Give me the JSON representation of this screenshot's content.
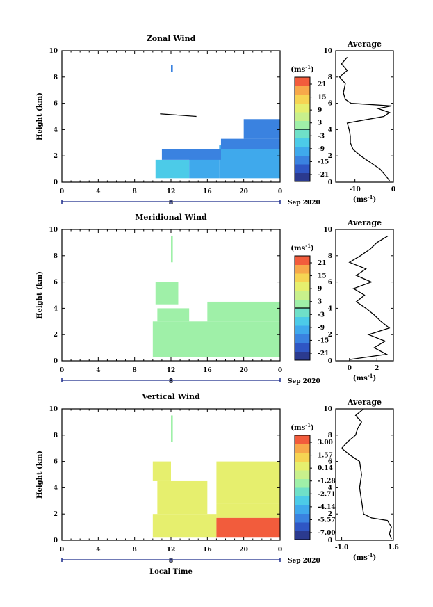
{
  "chart_data": [
    {
      "type": "heatmap",
      "title": "Zonal Wind",
      "xlabel": "",
      "ylabel": "Height (km)",
      "xlim": [
        0,
        24
      ],
      "ylim": [
        0,
        10
      ],
      "x_ticks": [
        "0",
        "4",
        "8",
        "12",
        "16",
        "20",
        "0"
      ],
      "y_ticks": [
        "0",
        "2",
        "4",
        "6",
        "8",
        "10"
      ],
      "date_marker": {
        "x": 12,
        "label": "8"
      },
      "date_suffix": "Sep 2020",
      "colorbar": {
        "unit_base": "(ms",
        "unit_exp": "-1",
        "unit_close": ")",
        "ticks": [
          "21",
          "15",
          "9",
          "3",
          "-3",
          "-9",
          "-15",
          "-21"
        ],
        "vmin": -24,
        "vmax": 24
      },
      "blocks": [
        [
          10.3,
          14.0,
          0.3,
          1.7,
          -7
        ],
        [
          14.0,
          17.3,
          0.3,
          2.5,
          -10
        ],
        [
          17.3,
          24,
          0.3,
          2.8,
          -12
        ],
        [
          11.0,
          17.5,
          1.7,
          2.5,
          -14
        ],
        [
          17.5,
          24,
          2.5,
          3.3,
          -15
        ],
        [
          20.0,
          24,
          3.3,
          4.8,
          -16
        ],
        [
          12.0,
          12.2,
          8.4,
          8.9,
          -15
        ]
      ],
      "contours": [
        [
          [
            10.8,
            5.2
          ],
          [
            14.8,
            5.0
          ]
        ]
      ],
      "profile": {
        "title": "Average",
        "xlabel_base": "(ms",
        "xlabel_exp": "-1",
        "xlabel_close": ")",
        "xlim": [
          -15,
          0
        ],
        "x_ticks": [
          {
            "v": -10,
            "t": "-10"
          },
          {
            "v": 0,
            "t": "0"
          }
        ],
        "y_ticks": [
          "0",
          "2",
          "4",
          "6",
          "8",
          "10"
        ],
        "height": [
          0.1,
          0.5,
          1,
          1.5,
          2,
          2.5,
          3,
          3.5,
          4,
          4.5,
          5,
          5.3,
          5.6,
          5.8,
          6,
          6.3,
          6.8,
          7.5,
          8,
          8.5,
          9,
          9.5
        ],
        "value": [
          -1,
          -2,
          -3.5,
          -6,
          -8.5,
          -10.5,
          -11.2,
          -11.2,
          -11.5,
          -12,
          -2.5,
          -1,
          -4,
          -0.5,
          -11,
          -12.5,
          -13,
          -12.5,
          -14,
          -12,
          -13.5,
          -12
        ]
      }
    },
    {
      "type": "heatmap",
      "title": "Meridional Wind",
      "xlabel": "",
      "ylabel": "Height (km)",
      "xlim": [
        0,
        24
      ],
      "ylim": [
        0,
        10
      ],
      "x_ticks": [
        "0",
        "4",
        "8",
        "12",
        "16",
        "20",
        "0"
      ],
      "y_ticks": [
        "0",
        "2",
        "4",
        "6",
        "8",
        "10"
      ],
      "date_marker": {
        "x": 12,
        "label": "8"
      },
      "date_suffix": "Sep 2020",
      "colorbar": {
        "unit_base": "(ms",
        "unit_exp": "-1",
        "unit_close": ")",
        "ticks": [
          "21",
          "15",
          "9",
          "3",
          "-3",
          "-9",
          "-15",
          "-21"
        ],
        "vmin": -24,
        "vmax": 24
      },
      "blocks": [
        [
          10.0,
          24,
          0.3,
          1.8,
          2
        ],
        [
          10.0,
          24,
          1.8,
          3.0,
          3
        ],
        [
          10.5,
          14,
          3.0,
          4.0,
          2
        ],
        [
          16.0,
          24,
          3.0,
          4.5,
          1
        ],
        [
          10.3,
          12.8,
          4.3,
          6.0,
          3
        ],
        [
          12.0,
          12.2,
          7.5,
          9.5,
          2
        ]
      ],
      "contours": [],
      "profile": {
        "title": "Average",
        "xlabel_base": "(ms",
        "xlabel_exp": "-1",
        "xlabel_close": ")",
        "xlim": [
          -1,
          3.2
        ],
        "x_ticks": [
          {
            "v": 0,
            "t": "0"
          },
          {
            "v": 2,
            "t": "2"
          }
        ],
        "y_ticks": [
          "0",
          "2",
          "4",
          "6",
          "8",
          "10"
        ],
        "height": [
          0.1,
          0.5,
          1,
          1.5,
          2,
          2.5,
          3,
          3.5,
          4,
          4.5,
          5,
          5.5,
          6,
          6.5,
          7,
          7.5,
          8,
          8.5,
          9,
          9.5
        ],
        "value": [
          0,
          2.7,
          1.8,
          2.6,
          1.4,
          2.9,
          2.3,
          1.8,
          1.2,
          0.5,
          1.1,
          0.3,
          1.6,
          0.5,
          1.2,
          0,
          0.8,
          1.5,
          2.0,
          2.8
        ]
      }
    },
    {
      "type": "heatmap",
      "title": "Vertical Wind",
      "xlabel": "Local Time",
      "ylabel": "Height (km)",
      "xlim": [
        0,
        24
      ],
      "ylim": [
        0,
        10
      ],
      "x_ticks": [
        "0",
        "4",
        "8",
        "12",
        "16",
        "20",
        "0"
      ],
      "y_ticks": [
        "0",
        "2",
        "4",
        "6",
        "8",
        "10"
      ],
      "date_marker": {
        "x": 12,
        "label": "8"
      },
      "date_suffix": "Sep 2020",
      "colorbar": {
        "unit_base": "(ms",
        "unit_exp": "-1",
        "unit_close": ")",
        "ticks": [
          "3.00",
          "1.57",
          "0.14",
          "-1.28",
          "-2.71",
          "-4.14",
          "-5.57",
          "-7.00"
        ],
        "vmin": -7.7,
        "vmax": 3.7
      },
      "blocks": [
        [
          10.0,
          17.0,
          0.2,
          2.0,
          0.5
        ],
        [
          17.0,
          24,
          1.7,
          2.8,
          0.3
        ],
        [
          10.5,
          16.0,
          2.0,
          4.5,
          0.7
        ],
        [
          17.0,
          24,
          2.8,
          6.0,
          0.6
        ],
        [
          10.0,
          12.0,
          4.5,
          6.0,
          0.8
        ],
        [
          12.0,
          12.2,
          7.5,
          9.5,
          -1.8
        ],
        [
          17.0,
          24,
          0.2,
          1.7,
          3.4
        ]
      ],
      "contours": [],
      "profile": {
        "title": "Average",
        "xlabel_base": "(ms",
        "xlabel_exp": "-1",
        "xlabel_close": ")",
        "xlim": [
          -1.3,
          1.6
        ],
        "x_ticks": [
          {
            "v": -1.0,
            "t": "-1.0"
          },
          {
            "v": 1.6,
            "t": "1.6"
          }
        ],
        "y_ticks": [
          "0",
          "2",
          "4",
          "6",
          "8",
          "10"
        ],
        "height": [
          0.1,
          0.5,
          1,
          1.5,
          1.7,
          2,
          3,
          4,
          5,
          6,
          6.5,
          7,
          7.5,
          8,
          8.5,
          9,
          9.5,
          10
        ],
        "value": [
          1.5,
          1.4,
          1.5,
          1.3,
          0.5,
          0.1,
          0.0,
          -0.1,
          0.0,
          -0.1,
          -0.6,
          -1.0,
          -0.7,
          -0.3,
          -0.2,
          0.0,
          -0.3,
          0.1
        ]
      }
    }
  ]
}
